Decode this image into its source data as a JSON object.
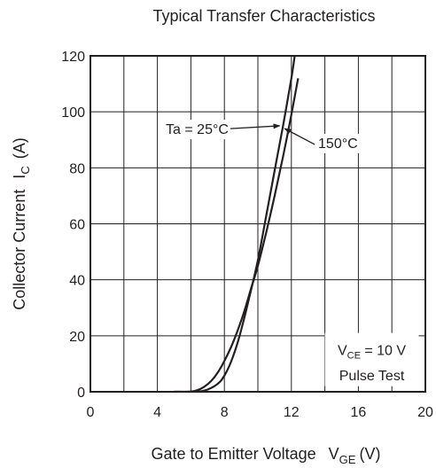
{
  "chart_data": {
    "type": "line",
    "title": "Typical Transfer Characteristics",
    "xlabel": {
      "main": "Gate to Emitter Voltage",
      "symbol": "V",
      "sub": "GE",
      "unit": "(V)"
    },
    "ylabel": {
      "main": "Collector Current",
      "symbol": "I",
      "sub": "C",
      "unit": "(A)"
    },
    "xlim": [
      0,
      20
    ],
    "ylim": [
      0,
      120
    ],
    "xticks": [
      0,
      4,
      8,
      12,
      16,
      20
    ],
    "yticks": [
      0,
      20,
      40,
      60,
      80,
      100,
      120
    ],
    "grid": true,
    "series": [
      {
        "name": "Ta = 25°C",
        "x": [
          5.0,
          6.0,
          6.6,
          7.0,
          7.4,
          7.8,
          8.2,
          8.6,
          9.0,
          9.5,
          10.0,
          10.5,
          11.0,
          11.5,
          12.0,
          12.2
        ],
        "y": [
          0,
          0,
          0.2,
          0.8,
          2,
          4,
          8,
          14,
          22,
          34,
          47,
          63,
          79,
          95,
          112,
          120
        ]
      },
      {
        "name": "150°C",
        "x": [
          5.0,
          6.0,
          6.4,
          6.8,
          7.2,
          7.6,
          8.0,
          8.4,
          8.8,
          9.2,
          9.6,
          10.0,
          10.5,
          11.0,
          11.5,
          12.0,
          12.4
        ],
        "y": [
          0,
          0.1,
          0.6,
          1.8,
          3.8,
          6.8,
          11,
          16,
          22,
          29,
          37,
          45,
          57,
          70,
          84,
          99,
          112
        ]
      }
    ],
    "annotations": [
      {
        "label": "Ta = 25°C",
        "text_x": 4.5,
        "text_y": 94,
        "arrow_to": [
          11.3,
          95
        ]
      },
      {
        "label": "150°C",
        "text_x": 13.6,
        "text_y": 89,
        "arrow_to": [
          11.6,
          94
        ]
      }
    ],
    "condition_box": {
      "line1_prefix": "V",
      "line1_sub": "CE",
      "line1_rest": " = 10 V",
      "line2": "Pulse Test"
    }
  }
}
